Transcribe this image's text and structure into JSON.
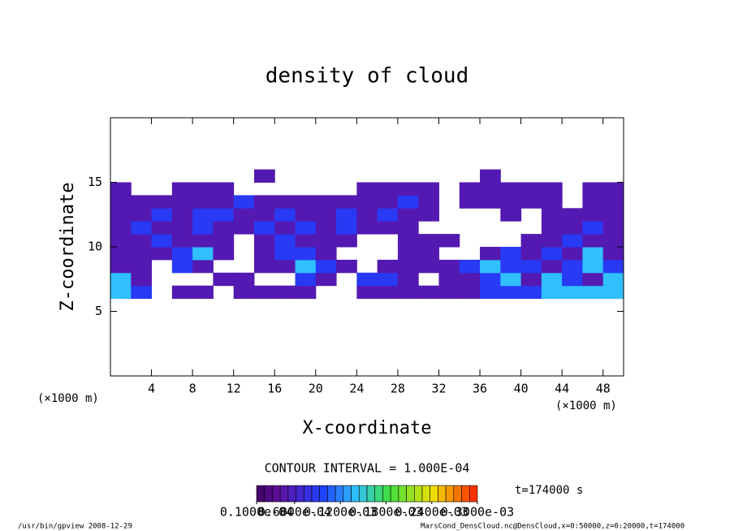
{
  "chart_data": {
    "type": "contour",
    "title": "density of cloud",
    "x_label": "X-coordinate",
    "y_label": "Z-coordinate",
    "x_unit_left": "(×1000 m)",
    "x_unit_right": "(×1000 m)",
    "contour_interval": "CONTOUR INTERVAL = 1.000E-04",
    "time_label": "t=174000 s",
    "footer_left": "/usr/bin/gpview  2008-12-29",
    "footer_right": "MarsCond_DensCloud.nc@DensCloud,x=0:50000,z=0:20000,t=174000",
    "xlim": [
      0,
      50
    ],
    "ylim": [
      0,
      20
    ],
    "xticks": [
      4,
      8,
      12,
      16,
      20,
      24,
      28,
      32,
      36,
      40,
      44,
      48
    ],
    "yticks": [
      5,
      10,
      15
    ],
    "xbins": [
      0,
      2,
      4,
      6,
      8,
      10,
      12,
      14,
      16,
      18,
      20,
      22,
      24,
      26,
      28,
      30,
      32,
      34,
      36,
      38,
      40,
      42,
      44,
      46,
      48,
      50
    ],
    "zbins": [
      6,
      7,
      8,
      9,
      10,
      11,
      12,
      13,
      14,
      15,
      16
    ],
    "field": [
      [
        0.00014,
        9e-05,
        0,
        5e-05,
        5e-05,
        0,
        5e-05,
        5e-05,
        5e-05,
        5e-05,
        0,
        0,
        5e-05,
        5e-05,
        5e-05,
        5e-05,
        5e-05,
        5e-05,
        9e-05,
        9e-05,
        9e-05,
        0.00014,
        0.00014,
        0.00014,
        0.00014
      ],
      [
        0.00014,
        5e-05,
        0,
        0,
        0,
        5e-05,
        5e-05,
        0,
        0,
        9e-05,
        5e-05,
        0,
        9e-05,
        9e-05,
        5e-05,
        0,
        5e-05,
        5e-05,
        9e-05,
        0.00014,
        5e-05,
        0.00014,
        9e-05,
        5e-05,
        0.00014
      ],
      [
        5e-05,
        5e-05,
        0,
        9e-05,
        5e-05,
        0,
        0,
        5e-05,
        5e-05,
        0.00014,
        9e-05,
        5e-05,
        0,
        5e-05,
        5e-05,
        5e-05,
        5e-05,
        9e-05,
        0.00014,
        9e-05,
        9e-05,
        5e-05,
        9e-05,
        0.00014,
        9e-05
      ],
      [
        5e-05,
        5e-05,
        5e-05,
        9e-05,
        0.00014,
        5e-05,
        0,
        5e-05,
        9e-05,
        9e-05,
        5e-05,
        0,
        0,
        0,
        5e-05,
        5e-05,
        0,
        0,
        5e-05,
        9e-05,
        5e-05,
        9e-05,
        5e-05,
        0.00014,
        5e-05
      ],
      [
        5e-05,
        5e-05,
        9e-05,
        5e-05,
        5e-05,
        5e-05,
        0,
        5e-05,
        9e-05,
        5e-05,
        5e-05,
        5e-05,
        0,
        0,
        5e-05,
        5e-05,
        5e-05,
        0,
        0,
        0,
        5e-05,
        5e-05,
        9e-05,
        5e-05,
        5e-05
      ],
      [
        5e-05,
        9e-05,
        5e-05,
        5e-05,
        9e-05,
        5e-05,
        5e-05,
        9e-05,
        5e-05,
        9e-05,
        5e-05,
        9e-05,
        5e-05,
        5e-05,
        5e-05,
        0,
        0,
        0,
        0,
        0,
        0,
        5e-05,
        5e-05,
        9e-05,
        5e-05
      ],
      [
        5e-05,
        5e-05,
        9e-05,
        5e-05,
        9e-05,
        9e-05,
        5e-05,
        5e-05,
        9e-05,
        5e-05,
        5e-05,
        9e-05,
        5e-05,
        9e-05,
        5e-05,
        5e-05,
        0,
        0,
        0,
        5e-05,
        0,
        5e-05,
        5e-05,
        5e-05,
        5e-05
      ],
      [
        5e-05,
        5e-05,
        5e-05,
        5e-05,
        5e-05,
        5e-05,
        9e-05,
        5e-05,
        5e-05,
        5e-05,
        5e-05,
        5e-05,
        5e-05,
        5e-05,
        9e-05,
        5e-05,
        0,
        5e-05,
        5e-05,
        5e-05,
        5e-05,
        5e-05,
        0,
        5e-05,
        5e-05
      ],
      [
        5e-05,
        0,
        0,
        5e-05,
        5e-05,
        5e-05,
        0,
        0,
        0,
        0,
        0,
        0,
        5e-05,
        5e-05,
        5e-05,
        5e-05,
        0,
        5e-05,
        5e-05,
        5e-05,
        5e-05,
        5e-05,
        0,
        5e-05,
        5e-05
      ],
      [
        0,
        0,
        0,
        0,
        0,
        0,
        0,
        5e-05,
        0,
        0,
        0,
        0,
        0,
        0,
        0,
        0,
        0,
        0,
        5e-05,
        0,
        0,
        0,
        0,
        0,
        0
      ]
    ],
    "clim": [
      1e-05,
      0.0003
    ],
    "colorbar_ticks": [
      {
        "value": 1e-05,
        "label": "0.1000e-04"
      },
      {
        "value": 6e-05,
        "label": "0.6000e-04"
      },
      {
        "value": 0.00012,
        "label": "0.1200e-03"
      },
      {
        "value": 0.00018,
        "label": "0.1800e-03"
      },
      {
        "value": 0.00024,
        "label": "0.2400e-03"
      },
      {
        "value": 0.0003,
        "label": "0.3000e-03"
      }
    ]
  }
}
